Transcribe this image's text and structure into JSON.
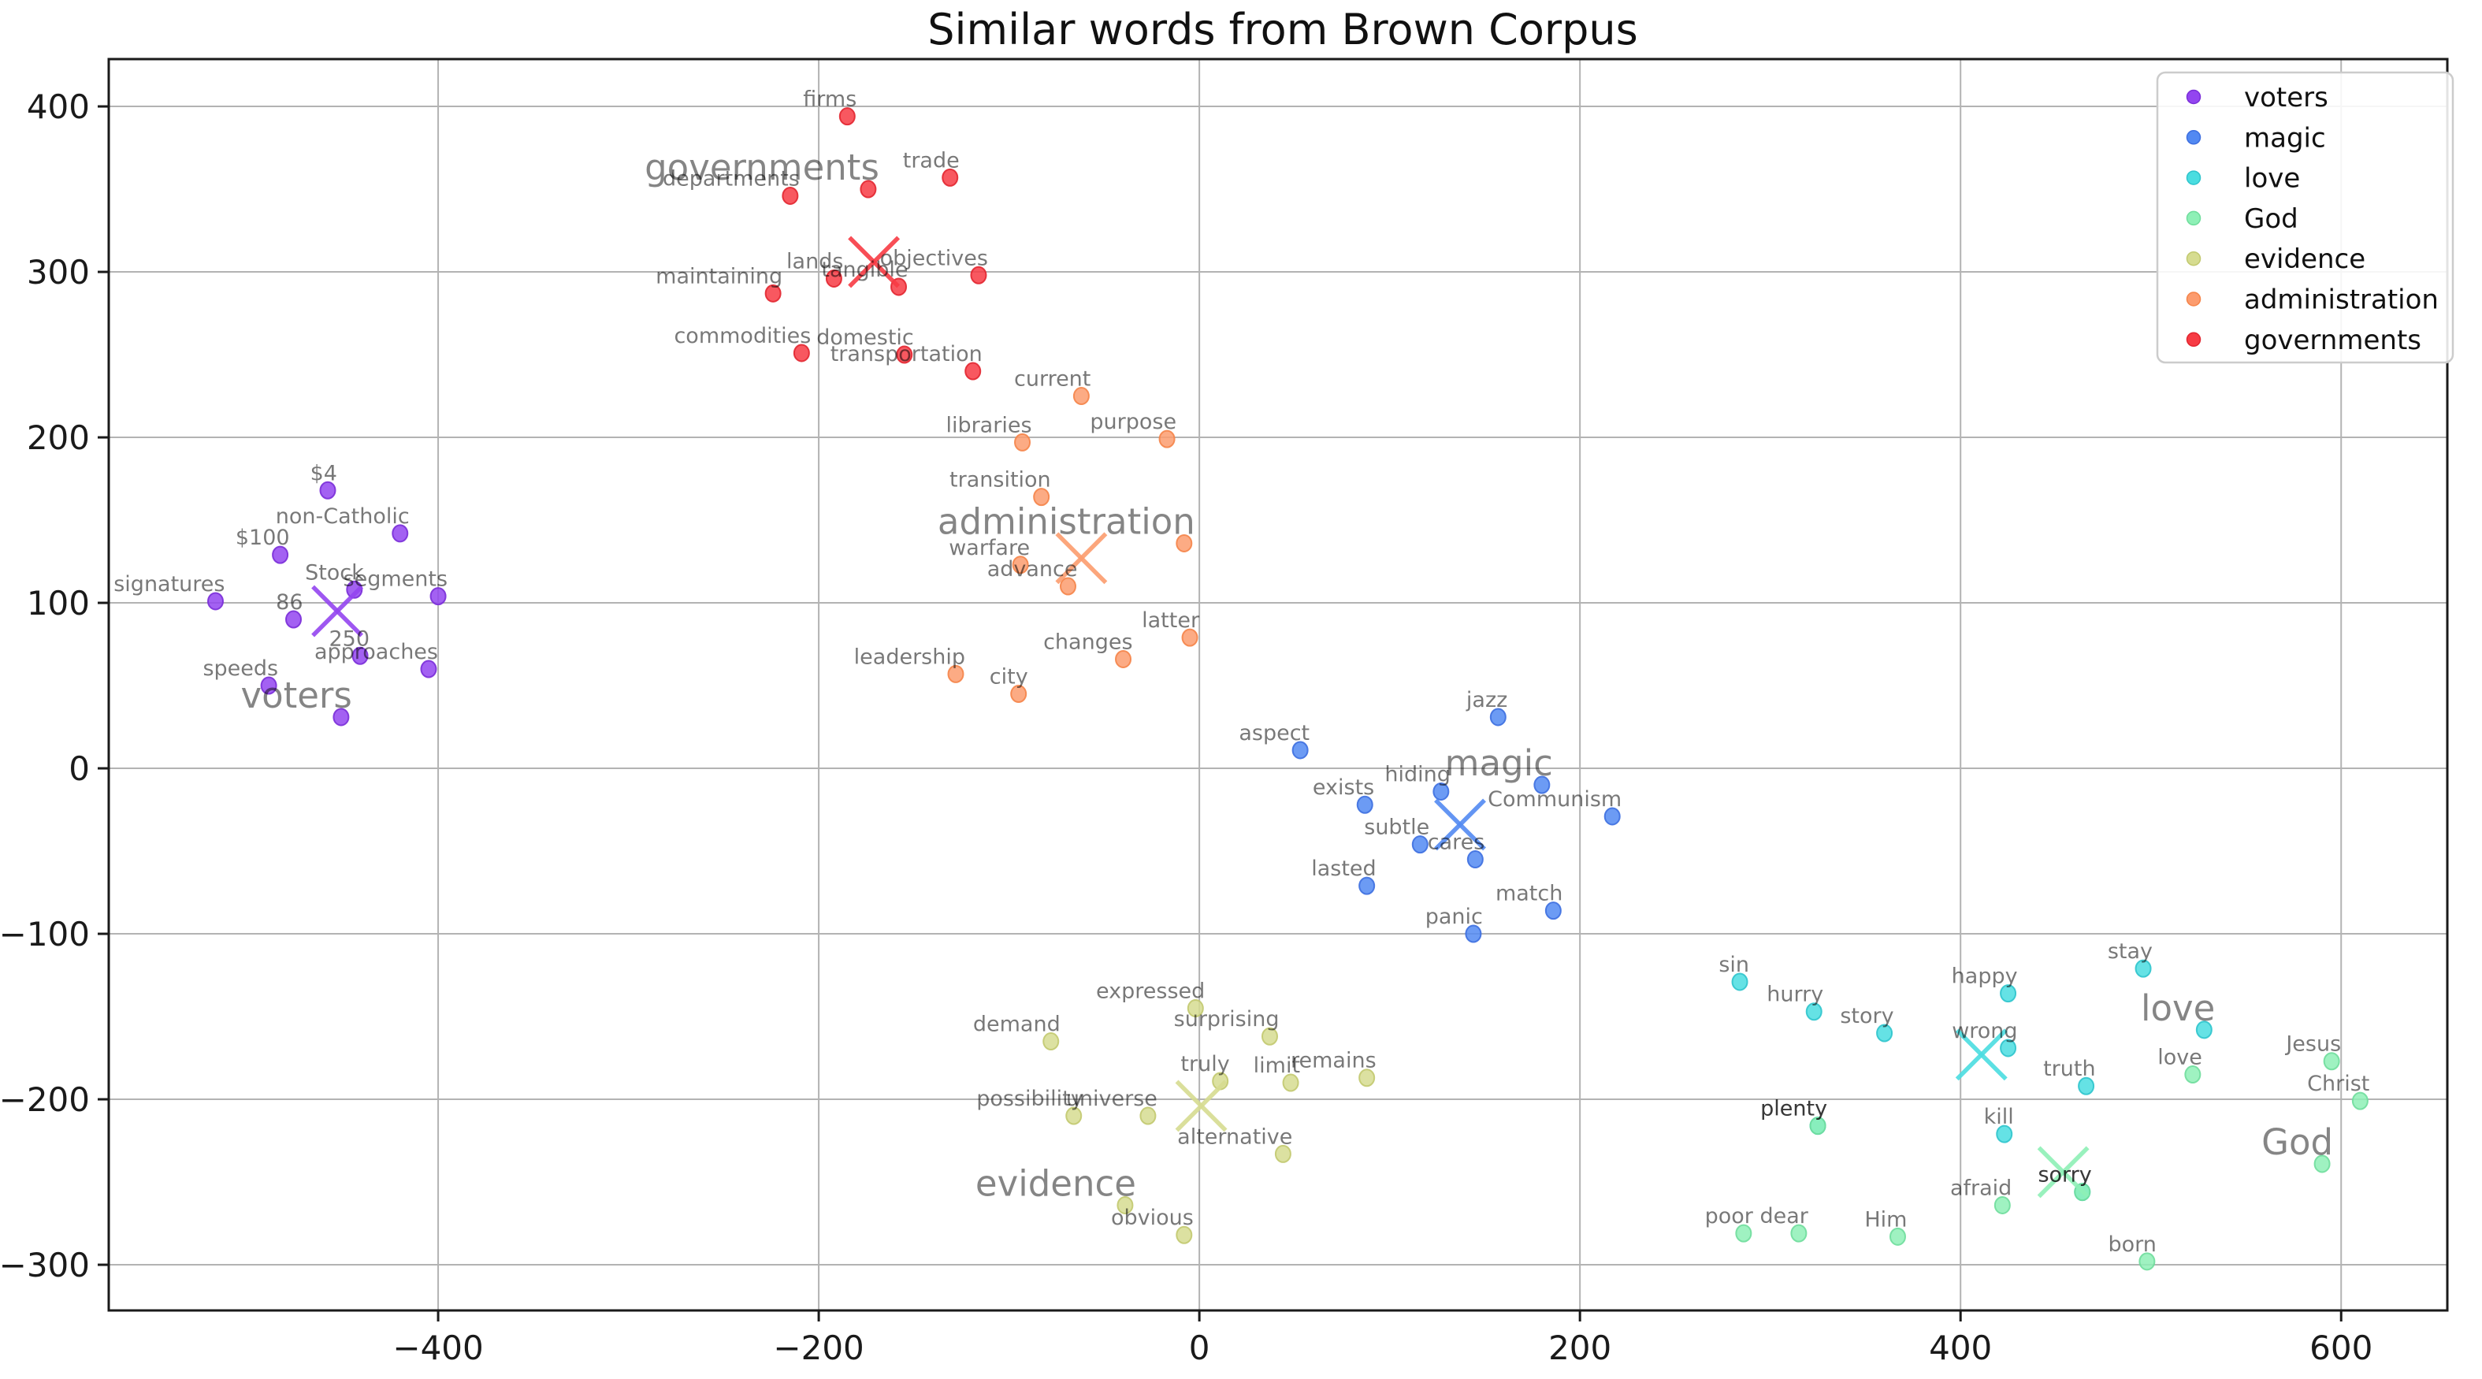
{
  "chart_data": {
    "type": "scatter",
    "title": "Similar words from Brown Corpus",
    "xlabel": "",
    "ylabel": "",
    "xlim": [
      -573.1,
      655.8
    ],
    "ylim": [
      -327.6,
      428.6
    ],
    "x_ticks": [
      -400,
      -200,
      0,
      200,
      400,
      600
    ],
    "y_ticks": [
      400,
      300,
      200,
      100,
      0,
      -100,
      -200,
      -300
    ],
    "grid": true,
    "grid_color": "#b3b3b3",
    "legend_position": "upper right",
    "series": [
      {
        "name": "voters",
        "color": "#9345F0",
        "edge": "#7A2ED8",
        "centroid": [
          -453,
          95
        ],
        "query": {
          "word": "voters",
          "x": -451,
          "y": 31
        },
        "points": [
          {
            "word": "$4",
            "x": -458,
            "y": 168
          },
          {
            "word": "non-Catholic",
            "x": -420,
            "y": 142
          },
          {
            "word": "$100",
            "x": -483,
            "y": 129
          },
          {
            "word": "Stock",
            "x": -444,
            "y": 108
          },
          {
            "word": "segments",
            "x": -400,
            "y": 104
          },
          {
            "word": "signatures",
            "x": -517,
            "y": 101
          },
          {
            "word": "86",
            "x": -476,
            "y": 90
          },
          {
            "word": "250",
            "x": -441,
            "y": 68
          },
          {
            "word": "approaches",
            "x": -405,
            "y": 60
          },
          {
            "word": "speeds",
            "x": -489,
            "y": 50
          }
        ]
      },
      {
        "name": "magic",
        "color": "#5289F2",
        "edge": "#3D6FE0",
        "centroid": [
          137,
          -34
        ],
        "query": {
          "word": "magic",
          "x": 180,
          "y": -10
        },
        "points": [
          {
            "word": "jazz",
            "x": 157,
            "y": 31
          },
          {
            "word": "aspect",
            "x": 53,
            "y": 11
          },
          {
            "word": "hiding",
            "x": 127,
            "y": -14
          },
          {
            "word": "Communism",
            "x": 217,
            "y": -29
          },
          {
            "word": "exists",
            "x": 87,
            "y": -22
          },
          {
            "word": "subtle",
            "x": 116,
            "y": -46
          },
          {
            "word": "cares",
            "x": 145,
            "y": -55
          },
          {
            "word": "lasted",
            "x": 88,
            "y": -71
          },
          {
            "word": "match",
            "x": 186,
            "y": -86
          },
          {
            "word": "panic",
            "x": 144,
            "y": -100
          }
        ]
      },
      {
        "name": "love",
        "color": "#4ADDE0",
        "edge": "#2FC4CC",
        "centroid": [
          411,
          -173
        ],
        "query": {
          "word": "love",
          "x": 528,
          "y": -158
        },
        "points": [
          {
            "word": "stay",
            "x": 496,
            "y": -121
          },
          {
            "word": "sin",
            "x": 284,
            "y": -129
          },
          {
            "word": "happy",
            "x": 425,
            "y": -136
          },
          {
            "word": "hurry",
            "x": 323,
            "y": -147
          },
          {
            "word": "story",
            "x": 360,
            "y": -160
          },
          {
            "word": "wrong",
            "x": 425,
            "y": -169
          },
          {
            "word": "truth",
            "x": 466,
            "y": -192
          },
          {
            "word": "plenty",
            "x": 325,
            "y": -216
          },
          {
            "word": "kill",
            "x": 423,
            "y": -221
          },
          {
            "word": "sorry",
            "x": 464,
            "y": -256
          }
        ]
      },
      {
        "name": "God",
        "color": "#8EF0B6",
        "edge": "#6FDD9C",
        "centroid": [
          454,
          -244
        ],
        "query": {
          "word": "God",
          "x": 590,
          "y": -239
        },
        "points": [
          {
            "word": "love",
            "x": 522,
            "y": -185
          },
          {
            "word": "Jesus",
            "x": 595,
            "y": -177
          },
          {
            "word": "Christ",
            "x": 610,
            "y": -201
          },
          {
            "word": "plenty",
            "x": 325,
            "y": -216
          },
          {
            "word": "sorry",
            "x": 464,
            "y": -256
          },
          {
            "word": "afraid",
            "x": 422,
            "y": -264
          },
          {
            "word": "poor",
            "x": 286,
            "y": -281
          },
          {
            "word": "dear",
            "x": 315,
            "y": -281
          },
          {
            "word": "Him",
            "x": 367,
            "y": -283
          },
          {
            "word": "born",
            "x": 498,
            "y": -298
          }
        ]
      },
      {
        "name": "evidence",
        "color": "#D6DC90",
        "edge": "#C2C96F",
        "centroid": [
          1,
          -204
        ],
        "query": {
          "word": "evidence",
          "x": -39,
          "y": -264
        },
        "points": [
          {
            "word": "expressed",
            "x": -2,
            "y": -145
          },
          {
            "word": "surprising",
            "x": 37,
            "y": -162
          },
          {
            "word": "demand",
            "x": -78,
            "y": -165
          },
          {
            "word": "remains",
            "x": 88,
            "y": -187
          },
          {
            "word": "truly",
            "x": 11,
            "y": -189
          },
          {
            "word": "limit",
            "x": 48,
            "y": -190
          },
          {
            "word": "possibility",
            "x": -66,
            "y": -210
          },
          {
            "word": "universe",
            "x": -27,
            "y": -210
          },
          {
            "word": "alternative",
            "x": 44,
            "y": -233
          },
          {
            "word": "obvious",
            "x": -8,
            "y": -282
          }
        ]
      },
      {
        "name": "administration",
        "color": "#FC9C6E",
        "edge": "#F58449",
        "centroid": [
          -62,
          127
        ],
        "query": {
          "word": "administration",
          "x": -8,
          "y": 136
        },
        "points": [
          {
            "word": "current",
            "x": -62,
            "y": 225
          },
          {
            "word": "purpose",
            "x": -17,
            "y": 199
          },
          {
            "word": "libraries",
            "x": -93,
            "y": 197
          },
          {
            "word": "transition",
            "x": -83,
            "y": 164
          },
          {
            "word": "warfare",
            "x": -94,
            "y": 123
          },
          {
            "word": "advance",
            "x": -69,
            "y": 110
          },
          {
            "word": "latter",
            "x": -5,
            "y": 79
          },
          {
            "word": "changes",
            "x": -40,
            "y": 66
          },
          {
            "word": "leadership",
            "x": -128,
            "y": 57
          },
          {
            "word": "city",
            "x": -95,
            "y": 45
          }
        ]
      },
      {
        "name": "governments",
        "color": "#F73B44",
        "edge": "#E22630",
        "centroid": [
          -171,
          306
        ],
        "query": {
          "word": "governments",
          "x": -174,
          "y": 350
        },
        "points": [
          {
            "word": "firms",
            "x": -185,
            "y": 394
          },
          {
            "word": "trade",
            "x": -131,
            "y": 357
          },
          {
            "word": "departments",
            "x": -215,
            "y": 346
          },
          {
            "word": "objectives",
            "x": -116,
            "y": 298
          },
          {
            "word": "lands",
            "x": -192,
            "y": 296
          },
          {
            "word": "tangible",
            "x": -158,
            "y": 291
          },
          {
            "word": "maintaining",
            "x": -224,
            "y": 287
          },
          {
            "word": "commodities",
            "x": -209,
            "y": 251
          },
          {
            "word": "domestic",
            "x": -155,
            "y": 250
          },
          {
            "word": "transportation",
            "x": -119,
            "y": 240
          }
        ]
      }
    ]
  }
}
